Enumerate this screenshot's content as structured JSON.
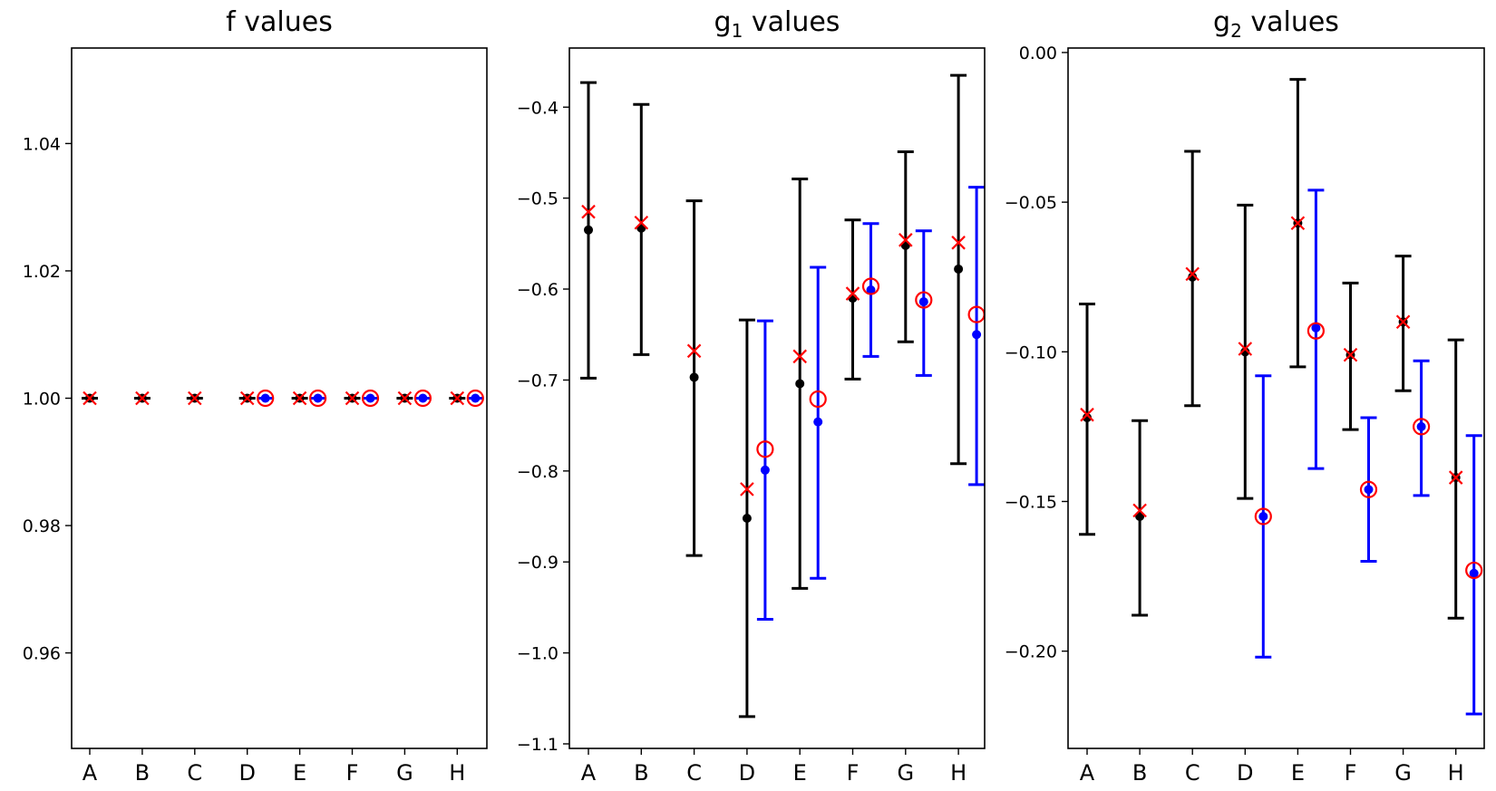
{
  "chart_data": [
    {
      "type": "errorbar",
      "title_main": "f values",
      "title_sub": "",
      "title_rest": "",
      "categories": [
        "A",
        "B",
        "C",
        "D",
        "E",
        "F",
        "G",
        "H"
      ],
      "ylim": [
        0.945,
        1.055
      ],
      "yticks": [
        0.96,
        0.98,
        1.0,
        1.02,
        1.04
      ],
      "ytick_labels": [
        "0.96",
        "0.98",
        "1.00",
        "1.02",
        "1.04"
      ],
      "series": [
        {
          "name": "black",
          "color": "#000000",
          "values": [
            1,
            1,
            1,
            1,
            1,
            1,
            1,
            1
          ],
          "lower": [
            1,
            1,
            1,
            1,
            1,
            1,
            1,
            1
          ],
          "upper": [
            1,
            1,
            1,
            1,
            1,
            1,
            1,
            1
          ]
        },
        {
          "name": "blue",
          "color": "#0000ff",
          "values": [
            null,
            null,
            null,
            1,
            1,
            1,
            1,
            1
          ],
          "lower": [
            null,
            null,
            null,
            1,
            1,
            1,
            1,
            1
          ],
          "upper": [
            null,
            null,
            null,
            1,
            1,
            1,
            1,
            1
          ]
        }
      ],
      "red_x": [
        1,
        1,
        1,
        1,
        1,
        1,
        1,
        1
      ],
      "red_circle": [
        null,
        null,
        null,
        1,
        1,
        1,
        1,
        1
      ]
    },
    {
      "type": "errorbar",
      "title_main": "g",
      "title_sub": "1",
      "title_rest": " values",
      "categories": [
        "A",
        "B",
        "C",
        "D",
        "E",
        "F",
        "G",
        "H"
      ],
      "ylim": [
        -1.105,
        -0.335
      ],
      "yticks": [
        -1.1,
        -1.0,
        -0.9,
        -0.8,
        -0.7,
        -0.6,
        -0.5,
        -0.4
      ],
      "ytick_labels": [
        "−1.1",
        "−1.0",
        "−0.9",
        "−0.8",
        "−0.7",
        "−0.6",
        "−0.5",
        "−0.4"
      ],
      "series": [
        {
          "name": "black",
          "color": "#000000",
          "values": [
            -0.535,
            -0.533,
            -0.697,
            -0.852,
            -0.704,
            -0.61,
            -0.552,
            -0.578
          ],
          "lower": [
            -0.698,
            -0.672,
            -0.893,
            -1.07,
            -0.929,
            -0.699,
            -0.658,
            -0.792
          ],
          "upper": [
            -0.373,
            -0.397,
            -0.503,
            -0.634,
            -0.479,
            -0.524,
            -0.449,
            -0.365
          ]
        },
        {
          "name": "blue",
          "color": "#0000ff",
          "values": [
            null,
            null,
            null,
            -0.799,
            -0.746,
            -0.601,
            -0.614,
            -0.65
          ],
          "lower": [
            null,
            null,
            null,
            -0.963,
            -0.918,
            -0.674,
            -0.695,
            -0.815
          ],
          "upper": [
            null,
            null,
            null,
            -0.635,
            -0.576,
            -0.528,
            -0.536,
            -0.488
          ]
        }
      ],
      "red_x": [
        -0.515,
        -0.527,
        -0.668,
        -0.82,
        -0.674,
        -0.605,
        -0.546,
        -0.549
      ],
      "red_circle": [
        null,
        null,
        null,
        -0.776,
        -0.721,
        -0.597,
        -0.612,
        -0.628
      ]
    },
    {
      "type": "errorbar",
      "title_main": "g",
      "title_sub": "2",
      "title_rest": " values",
      "categories": [
        "A",
        "B",
        "C",
        "D",
        "E",
        "F",
        "G",
        "H"
      ],
      "ylim": [
        -0.2325,
        0.0015
      ],
      "yticks": [
        -0.2,
        -0.15,
        -0.1,
        -0.05,
        0.0
      ],
      "ytick_labels": [
        "−0.20",
        "−0.15",
        "−0.10",
        "−0.05",
        "0.00"
      ],
      "series": [
        {
          "name": "black",
          "color": "#000000",
          "values": [
            -0.122,
            -0.155,
            -0.075,
            -0.1,
            -0.057,
            -0.101,
            -0.09,
            -0.142
          ],
          "lower": [
            -0.161,
            -0.188,
            -0.118,
            -0.149,
            -0.105,
            -0.126,
            -0.113,
            -0.189
          ],
          "upper": [
            -0.084,
            -0.123,
            -0.033,
            -0.051,
            -0.009,
            -0.077,
            -0.068,
            -0.096
          ]
        },
        {
          "name": "blue",
          "color": "#0000ff",
          "values": [
            null,
            null,
            null,
            -0.155,
            -0.092,
            -0.146,
            -0.125,
            -0.174
          ],
          "lower": [
            null,
            null,
            null,
            -0.202,
            -0.139,
            -0.17,
            -0.148,
            -0.221
          ],
          "upper": [
            null,
            null,
            null,
            -0.108,
            -0.046,
            -0.122,
            -0.103,
            -0.128
          ]
        }
      ],
      "red_x": [
        -0.121,
        -0.153,
        -0.074,
        -0.099,
        -0.057,
        -0.101,
        -0.09,
        -0.142
      ],
      "red_circle": [
        null,
        null,
        null,
        -0.155,
        -0.093,
        -0.146,
        -0.125,
        -0.173
      ]
    }
  ]
}
